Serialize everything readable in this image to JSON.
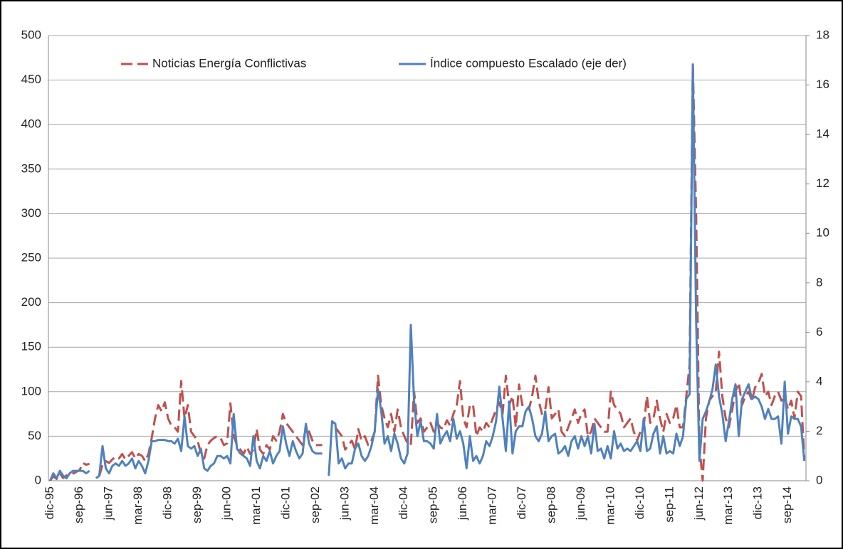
{
  "chart_data": {
    "type": "line",
    "categories": [
      "dic-95",
      null,
      null,
      null,
      null,
      null,
      null,
      null,
      null,
      "sep-96",
      null,
      null,
      null,
      null,
      null,
      null,
      null,
      null,
      "jun-97",
      null,
      null,
      null,
      null,
      null,
      null,
      null,
      null,
      "mar-98",
      null,
      null,
      null,
      null,
      null,
      null,
      null,
      null,
      "dic-98",
      null,
      null,
      null,
      null,
      null,
      null,
      null,
      null,
      "sep-99",
      null,
      null,
      null,
      null,
      null,
      null,
      null,
      null,
      "jun-00",
      null,
      null,
      null,
      null,
      null,
      null,
      null,
      null,
      "mar-01",
      null,
      null,
      null,
      null,
      null,
      null,
      null,
      null,
      "dic-01",
      null,
      null,
      null,
      null,
      null,
      null,
      null,
      null,
      "sep-02",
      null,
      null,
      null,
      null,
      null,
      null,
      null,
      null,
      "jun-03",
      null,
      null,
      null,
      null,
      null,
      null,
      null,
      null,
      "mar-04",
      null,
      null,
      null,
      null,
      null,
      null,
      null,
      null,
      "dic-04",
      null,
      null,
      null,
      null,
      null,
      null,
      null,
      null,
      "sep-05",
      null,
      null,
      null,
      null,
      null,
      null,
      null,
      null,
      "jun-06",
      null,
      null,
      null,
      null,
      null,
      null,
      null,
      null,
      "mar-07",
      null,
      null,
      null,
      null,
      null,
      null,
      null,
      null,
      "dic-07",
      null,
      null,
      null,
      null,
      null,
      null,
      null,
      null,
      "sep-08",
      null,
      null,
      null,
      null,
      null,
      null,
      null,
      null,
      "jun-09",
      null,
      null,
      null,
      null,
      null,
      null,
      null,
      null,
      "mar-10",
      null,
      null,
      null,
      null,
      null,
      null,
      null,
      null,
      "dic-10",
      null,
      null,
      null,
      null,
      null,
      null,
      null,
      null,
      "sep-11",
      null,
      null,
      null,
      null,
      null,
      null,
      null,
      null,
      "jun-12",
      null,
      null,
      null,
      null,
      null,
      null,
      null,
      null,
      "mar-13",
      null,
      null,
      null,
      null,
      null,
      null,
      null,
      null,
      "dic-13",
      null,
      null,
      null,
      null,
      null,
      null,
      null,
      null,
      "sep-14",
      null,
      null,
      null,
      null,
      null
    ],
    "series": [
      {
        "name": "Noticias Energía Conflictivas",
        "color": "#c0504d",
        "dashed": true,
        "values": [
          0,
          5,
          2,
          8,
          3,
          6,
          5,
          8,
          10,
          12,
          20,
          18,
          19,
          null,
          null,
          5,
          18,
          22,
          20,
          24,
          27,
          25,
          30,
          24,
          28,
          32,
          25,
          30,
          28,
          22,
          30,
          48,
          70,
          85,
          78,
          88,
          70,
          62,
          60,
          55,
          112,
          70,
          85,
          55,
          50,
          45,
          30,
          25,
          40,
          45,
          48,
          50,
          48,
          40,
          42,
          87,
          50,
          40,
          35,
          30,
          38,
          30,
          35,
          58,
          35,
          30,
          40,
          35,
          50,
          45,
          55,
          75,
          65,
          60,
          55,
          50,
          45,
          40,
          60,
          55,
          45,
          40,
          40,
          40,
          null,
          null,
          null,
          60,
          55,
          50,
          35,
          40,
          45,
          35,
          58,
          45,
          50,
          40,
          45,
          55,
          118,
          85,
          70,
          60,
          75,
          55,
          80,
          60,
          50,
          42,
          40,
          100,
          65,
          70,
          55,
          60,
          65,
          55,
          65,
          60,
          58,
          68,
          62,
          75,
          85,
          112,
          70,
          60,
          85,
          85,
          50,
          60,
          55,
          65,
          60,
          70,
          80,
          88,
          75,
          118,
          85,
          95,
          60,
          108,
          85,
          85,
          80,
          95,
          118,
          90,
          75,
          80,
          105,
          70,
          75,
          80,
          55,
          50,
          60,
          70,
          80,
          65,
          75,
          80,
          50,
          55,
          70,
          65,
          60,
          55,
          55,
          100,
          85,
          80,
          75,
          60,
          65,
          70,
          55,
          45,
          55,
          60,
          95,
          65,
          70,
          90,
          70,
          55,
          75,
          65,
          70,
          85,
          60,
          60,
          95,
          130,
          470,
          300,
          40,
          0,
          70,
          90,
          95,
          100,
          145,
          95,
          70,
          60,
          80,
          100,
          110,
          85,
          95,
          100,
          90,
          105,
          110,
          120,
          95,
          100,
          85,
          95,
          100,
          90,
          95,
          80,
          90,
          70,
          100,
          95,
          25
        ]
      },
      {
        "name": "Índice compuesto Escalado (eje der)",
        "color": "#4f81bd",
        "axis": "y2",
        "values": [
          0,
          0.3,
          0.1,
          0.4,
          0.2,
          0.1,
          0.3,
          0.4,
          0.4,
          0.4,
          0.4,
          0.3,
          0.4,
          null,
          0.1,
          0.2,
          1.4,
          0.5,
          0.3,
          0.6,
          0.7,
          0.6,
          0.8,
          0.6,
          0.7,
          0.9,
          0.5,
          0.8,
          0.6,
          0.3,
          0.8,
          1.6,
          1.6,
          1.65,
          1.65,
          1.65,
          1.6,
          1.6,
          1.5,
          1.7,
          1.2,
          2.6,
          1.4,
          1.3,
          1.4,
          1.0,
          1.3,
          0.5,
          0.4,
          0.6,
          0.7,
          1.0,
          1.0,
          0.9,
          1.0,
          0.7,
          2.7,
          1.3,
          1.1,
          1.0,
          0.9,
          0.6,
          1.8,
          0.8,
          0.5,
          1.0,
          0.8,
          1.2,
          0.7,
          1.0,
          1.2,
          2.2,
          1.5,
          1.0,
          1.6,
          1.2,
          0.9,
          1.1,
          2.3,
          1.5,
          1.2,
          1.1,
          1.1,
          1.1,
          null,
          0.2,
          2.4,
          2.3,
          0.7,
          0.9,
          0.5,
          0.7,
          0.7,
          1.3,
          1.5,
          1.0,
          0.8,
          1.0,
          1.4,
          2.0,
          3.7,
          2.8,
          1.5,
          1.8,
          1.2,
          1.9,
          1.5,
          0.9,
          0.7,
          1.1,
          6.3,
          3.2,
          1.8,
          2.4,
          1.6,
          1.6,
          1.5,
          1.3,
          2.7,
          1.5,
          1.8,
          2.0,
          1.6,
          2.5,
          1.7,
          2.0,
          1.5,
          0.5,
          1.8,
          0.8,
          1.0,
          0.7,
          1.0,
          1.6,
          1.4,
          1.8,
          2.4,
          3.8,
          2.5,
          1.2,
          3.2,
          1.1,
          2.0,
          2.2,
          2.2,
          2.8,
          3.0,
          2.5,
          1.8,
          1.6,
          1.9,
          2.8,
          1.6,
          1.8,
          1.9,
          1.1,
          1.2,
          1.4,
          1.0,
          1.6,
          1.8,
          1.3,
          1.8,
          1.4,
          1.8,
          1.1,
          2.3,
          1.2,
          1.3,
          0.9,
          1.4,
          0.9,
          2.0,
          1.3,
          1.5,
          1.2,
          1.3,
          1.2,
          1.4,
          1.6,
          1.2,
          2.5,
          1.2,
          1.3,
          1.9,
          2.2,
          1.1,
          1.8,
          1.1,
          1.2,
          1.1,
          1.9,
          1.4,
          1.8,
          3.3,
          3.5,
          16.8,
          6.5,
          0.8,
          2.5,
          2.8,
          3.2,
          3.7,
          4.7,
          3.4,
          2.7,
          1.6,
          2.4,
          3.3,
          3.9,
          1.8,
          3.3,
          3.6,
          3.9,
          3.3,
          3.4,
          3.3,
          3.0,
          2.5,
          2.9,
          2.5,
          2.5,
          2.6,
          1.5,
          4.0,
          1.9,
          2.6,
          2.5,
          2.5,
          2.2,
          0.8
        ]
      }
    ],
    "ylim": [
      0,
      500
    ],
    "yticks": [
      0,
      50,
      100,
      150,
      200,
      250,
      300,
      350,
      400,
      450,
      500
    ],
    "y2lim": [
      0,
      18
    ],
    "y2ticks": [
      0,
      2,
      4,
      6,
      8,
      10,
      12,
      14,
      16,
      18
    ],
    "grid": true,
    "legend": "top"
  }
}
